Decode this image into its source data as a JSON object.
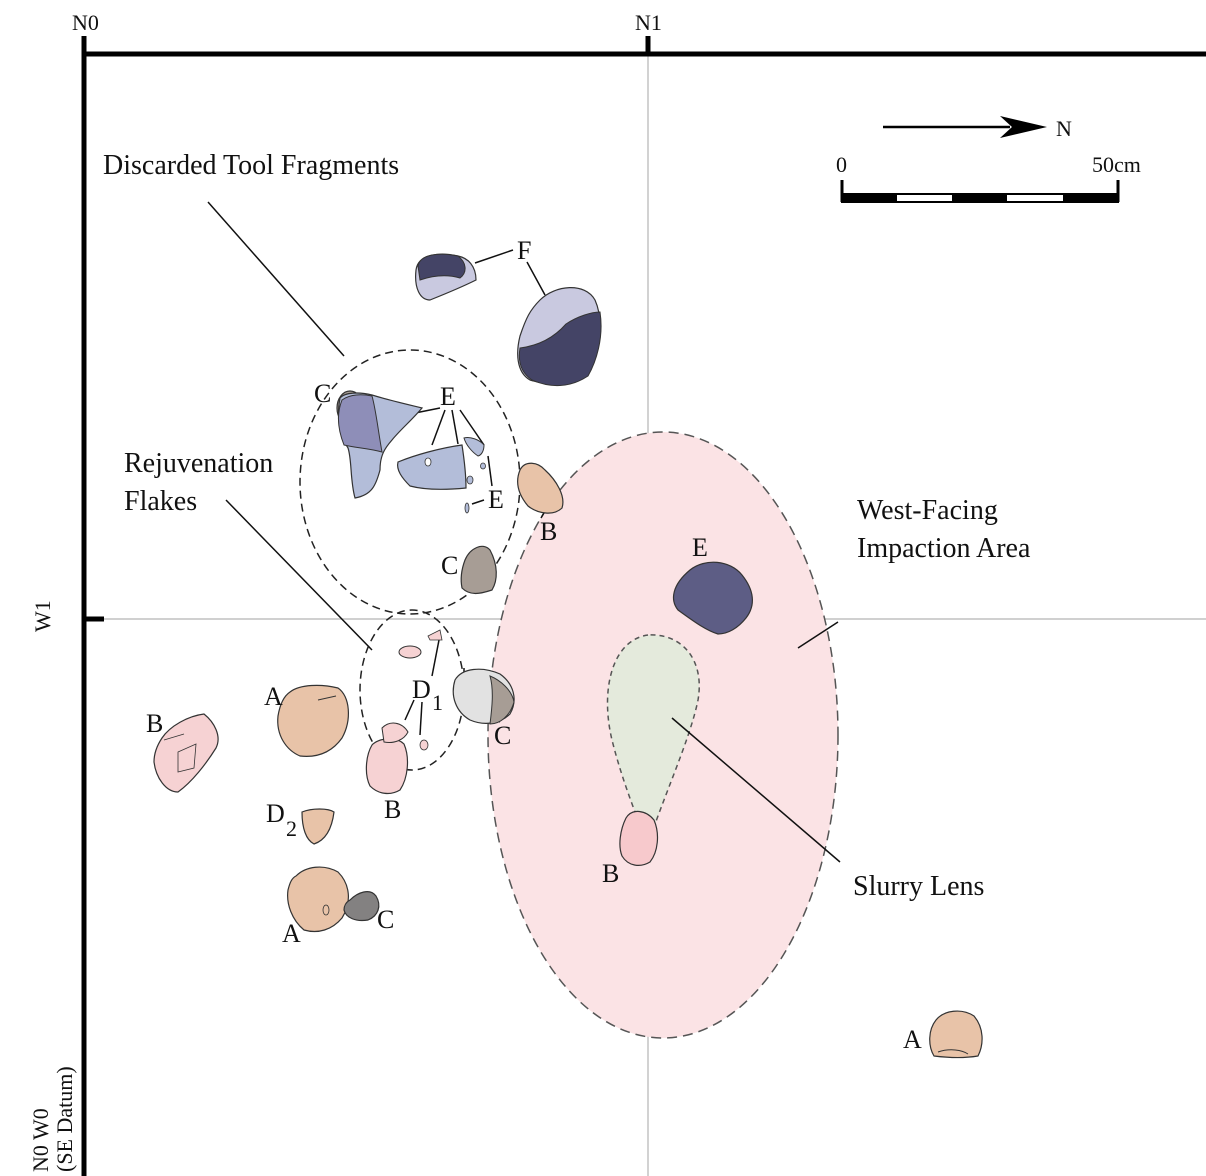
{
  "grid": {
    "top_labels": [
      "N0",
      "N1"
    ],
    "left_labels": [
      "W1"
    ],
    "datum_lines": [
      "N0 W0",
      "(SE Datum)"
    ]
  },
  "north_arrow": {
    "label": "N"
  },
  "scale": {
    "start": "0",
    "end": "50cm",
    "segments": 5
  },
  "annotations": {
    "discarded_tool_fragments": "Discarded Tool Fragments",
    "rejuvenation_flakes": [
      "Rejuvenation",
      "Flakes"
    ],
    "impaction_area": [
      "West-Facing",
      "Impaction Area"
    ],
    "slurry_lens": "Slurry Lens"
  },
  "artifact_labels": {
    "f": "F",
    "c_top": "C",
    "e_top": "E",
    "e_small": "E",
    "b_upper": "B",
    "c_mid": "C",
    "e_impaction": "E",
    "a_left": "A",
    "d1_letter": "D",
    "d1_sub": "1",
    "c_grey": "C",
    "b_far_left": "B",
    "b_center": "B",
    "d2_letter": "D",
    "d2_sub": "2",
    "a_low": "A",
    "c_low": "C",
    "b_slurry": "B",
    "a_far": "A"
  },
  "colors": {
    "tan": "#e8c3a8",
    "pink": "#f6d2d3",
    "light_purple": "#c9c9e0",
    "blue_grey": "#b3bdd9",
    "mid_purple": "#8e8eb8",
    "dark_navy": "#444466",
    "grey_brown": "#a79d95",
    "dark_grey": "#838181",
    "light_grey": "#e2e2e2",
    "impaction_fill": "#fbe3e5",
    "slurry_fill": "#e4eadc"
  }
}
